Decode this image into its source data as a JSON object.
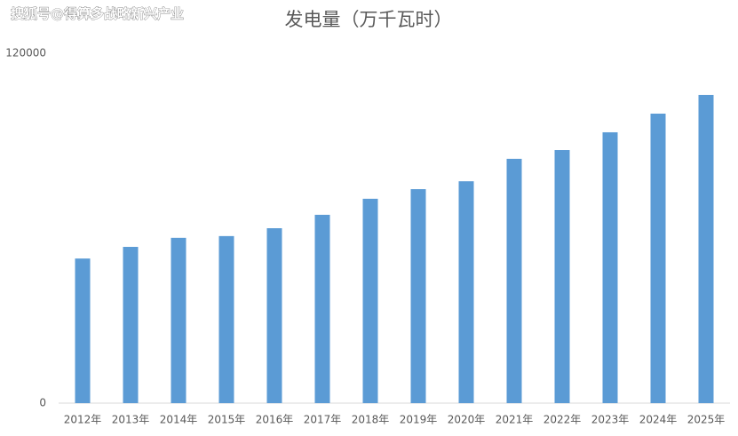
{
  "watermark": "搜狐号@得算多战略新兴产业",
  "chart_data": {
    "type": "bar",
    "title": "发电量（万千瓦时）",
    "categories": [
      "2012年",
      "2013年",
      "2014年",
      "2015年",
      "2016年",
      "2017年",
      "2018年",
      "2019年",
      "2020年",
      "2021年",
      "2022年",
      "2023年",
      "2024年",
      "2025年"
    ],
    "values": [
      49600,
      53600,
      56700,
      57300,
      60000,
      64600,
      70100,
      73400,
      76100,
      83800,
      86800,
      92900,
      99300,
      105700
    ],
    "color": "#5b9bd5",
    "ylim": [
      0,
      120000
    ],
    "yticks": [
      0,
      120000
    ],
    "grid": false
  }
}
